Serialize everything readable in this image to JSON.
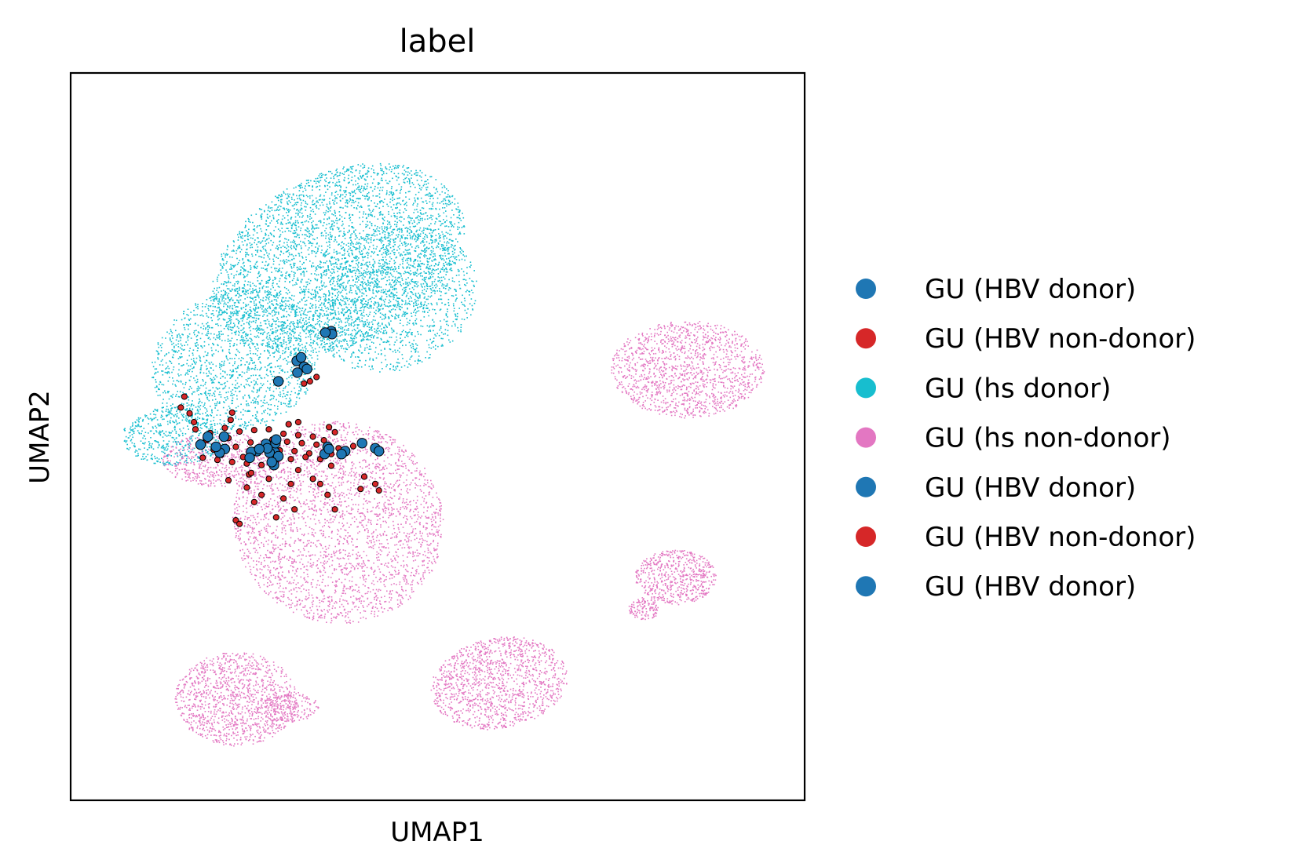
{
  "chart_data": {
    "type": "scatter",
    "title": "label",
    "xlabel": "UMAP1",
    "ylabel": "UMAP2",
    "xlim": [
      0,
      100
    ],
    "ylim": [
      0,
      100
    ],
    "grid": false,
    "ticks": false,
    "legend_placement": "right",
    "legend": [
      {
        "label": "GU (HBV donor)",
        "color": "#1f77b4"
      },
      {
        "label": "GU (HBV non-donor)",
        "color": "#d62728"
      },
      {
        "label": "GU (hs donor)",
        "color": "#17becf"
      },
      {
        "label": "GU (hs non-donor)",
        "color": "#e377c2"
      },
      {
        "label": "GU (HBV donor)",
        "color": "#1f77b4"
      },
      {
        "label": "GU (HBV non-donor)",
        "color": "#d62728"
      },
      {
        "label": "GU (HBV donor)",
        "color": "#1f77b4"
      }
    ],
    "highlight_points": {
      "HBV donor": [
        [
          35.5,
          64.5
        ],
        [
          35.6,
          64.1
        ],
        [
          34.7,
          64.3
        ],
        [
          30.8,
          60.4
        ],
        [
          31.4,
          60.9
        ],
        [
          31.8,
          59.6
        ],
        [
          32.2,
          59.3
        ],
        [
          28.3,
          57.6
        ],
        [
          39.7,
          49.1
        ],
        [
          41.5,
          48.4
        ],
        [
          42.0,
          48.0
        ],
        [
          37.4,
          48.0
        ],
        [
          36.9,
          47.6
        ],
        [
          35.0,
          48.6
        ],
        [
          27.8,
          47.9
        ],
        [
          27.9,
          49.1
        ],
        [
          26.6,
          49.0
        ],
        [
          25.4,
          48.0
        ],
        [
          24.6,
          47.9
        ],
        [
          24.4,
          47.1
        ],
        [
          27.1,
          47.8
        ],
        [
          28.3,
          47.3
        ],
        [
          26.8,
          48.4
        ],
        [
          25.7,
          48.3
        ],
        [
          27.7,
          46.1
        ],
        [
          27.4,
          46.5
        ],
        [
          21.0,
          48.3
        ],
        [
          20.3,
          47.8
        ],
        [
          19.8,
          48.6
        ],
        [
          17.7,
          48.9
        ],
        [
          18.7,
          50.0
        ],
        [
          20.9,
          50.0
        ],
        [
          28.0,
          49.6
        ],
        [
          34.6,
          47.6
        ],
        [
          35.2,
          48.3
        ],
        [
          30.9,
          58.8
        ]
      ],
      "HBV non-donor": [
        [
          17.5,
          49.0
        ],
        [
          18.5,
          49.5
        ],
        [
          19.5,
          48.2
        ],
        [
          20.5,
          47.5
        ],
        [
          21.5,
          49.8
        ],
        [
          22.5,
          48.6
        ],
        [
          23.5,
          47.2
        ],
        [
          24.5,
          49.2
        ],
        [
          25.5,
          47.9
        ],
        [
          26.5,
          48.7
        ],
        [
          27.5,
          49.6
        ],
        [
          28.5,
          48.1
        ],
        [
          29.5,
          49.3
        ],
        [
          30.5,
          48.0
        ],
        [
          31.5,
          49.1
        ],
        [
          32.5,
          47.7
        ],
        [
          33.5,
          48.9
        ],
        [
          34.5,
          49.5
        ],
        [
          35.5,
          47.6
        ],
        [
          36.5,
          48.4
        ],
        [
          18.0,
          47.1
        ],
        [
          19.0,
          50.5
        ],
        [
          20.0,
          46.8
        ],
        [
          21.0,
          51.2
        ],
        [
          22.0,
          46.5
        ],
        [
          23.0,
          50.7
        ],
        [
          24.0,
          46.3
        ],
        [
          25.0,
          50.9
        ],
        [
          26.0,
          46.1
        ],
        [
          27.0,
          51.0
        ],
        [
          28.0,
          46.7
        ],
        [
          29.0,
          50.4
        ],
        [
          30.0,
          46.9
        ],
        [
          31.0,
          50.2
        ],
        [
          32.0,
          47.2
        ],
        [
          33.0,
          50.0
        ],
        [
          34.0,
          46.9
        ],
        [
          15.0,
          54.0
        ],
        [
          16.2,
          53.2
        ],
        [
          15.5,
          55.5
        ],
        [
          16.8,
          52.0
        ],
        [
          17.0,
          51.0
        ],
        [
          21.5,
          44.0
        ],
        [
          24.0,
          43.0
        ],
        [
          26.0,
          42.0
        ],
        [
          30.0,
          43.5
        ],
        [
          33.0,
          44.2
        ],
        [
          40.0,
          44.5
        ],
        [
          41.5,
          43.5
        ],
        [
          42.0,
          42.6
        ],
        [
          39.5,
          42.8
        ],
        [
          35.0,
          42.0
        ],
        [
          30.5,
          40.0
        ],
        [
          28.0,
          38.9
        ],
        [
          22.5,
          38.5
        ],
        [
          23.0,
          38.0
        ],
        [
          25.0,
          41.0
        ],
        [
          24.3,
          44.8
        ],
        [
          31.0,
          52.0
        ],
        [
          29.7,
          51.7
        ],
        [
          36.0,
          50.6
        ],
        [
          35.2,
          51.3
        ],
        [
          38.5,
          48.7
        ],
        [
          35.5,
          46.0
        ],
        [
          31.0,
          45.4
        ],
        [
          24.6,
          45.0
        ],
        [
          21.8,
          52.3
        ],
        [
          32.6,
          57.6
        ],
        [
          33.5,
          58.2
        ],
        [
          31.8,
          57.3
        ],
        [
          22.0,
          53.3
        ],
        [
          27.0,
          44.2
        ],
        [
          29.0,
          41.5
        ],
        [
          36.0,
          40.0
        ],
        [
          34.0,
          43.5
        ]
      ]
    }
  }
}
